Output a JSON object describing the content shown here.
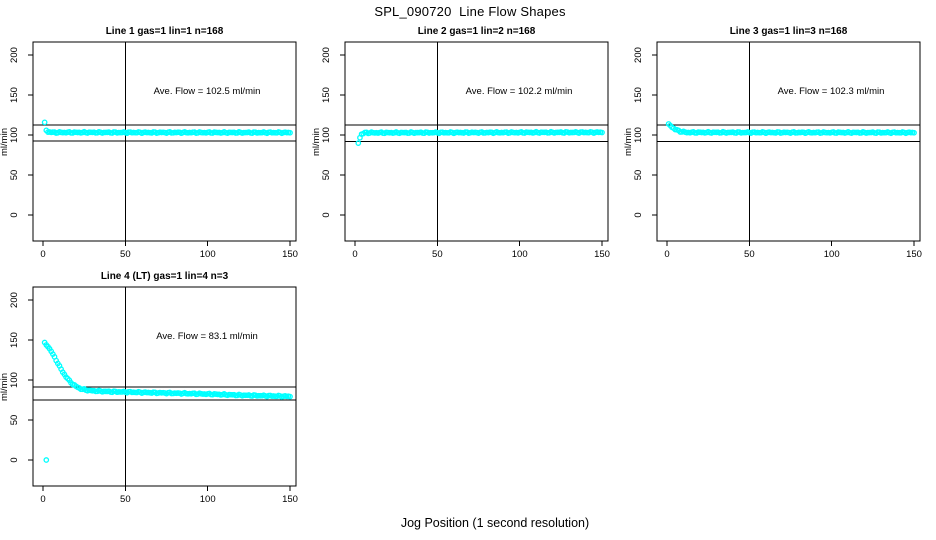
{
  "chart_data": {
    "type": "scatter",
    "title": "SPL_090720  Line Flow Shapes",
    "xlabel": "Jog Position (1 second resolution)",
    "ylabel": "ml/min",
    "point_color": "#00FFFF",
    "axis_color": "#000000",
    "grid": false,
    "legend": "none",
    "x_ticks": [
      0,
      50,
      100,
      150
    ],
    "y_ticks": [
      0,
      50,
      100,
      150,
      200
    ],
    "xlim": [
      -6,
      154
    ],
    "ylim": [
      -32,
      216
    ],
    "vline_x": 50,
    "subplots": [
      {
        "title": "Line 1 gas=1 lin=1 n=168",
        "annotation": "Ave. Flow =  102.5  ml/min",
        "ave_flow": 102.5,
        "n": 168,
        "hlines": [
          112.8,
          92.3
        ],
        "profile": [
          [
            1,
            115
          ],
          [
            2,
            106
          ],
          [
            3,
            104
          ],
          [
            6,
            103.2
          ],
          [
            150,
            103
          ]
        ],
        "extra_points": []
      },
      {
        "title": "Line 2 gas=1 lin=2 n=168",
        "annotation": "Ave. Flow =  102.2  ml/min",
        "ave_flow": 102.2,
        "n": 168,
        "hlines": [
          112.4,
          92.0
        ],
        "profile": [
          [
            2,
            90
          ],
          [
            3,
            97
          ],
          [
            4,
            101
          ],
          [
            6,
            102.8
          ],
          [
            150,
            103.3
          ]
        ],
        "extra_points": []
      },
      {
        "title": "Line 3 gas=1 lin=3 n=168",
        "annotation": "Ave. Flow =  102.3  ml/min",
        "ave_flow": 102.3,
        "n": 168,
        "hlines": [
          112.5,
          92.1
        ],
        "profile": [
          [
            1,
            113
          ],
          [
            2,
            112
          ],
          [
            3,
            110
          ],
          [
            5,
            107
          ],
          [
            8,
            104.5
          ],
          [
            12,
            103.2
          ],
          [
            150,
            103
          ]
        ],
        "extra_points": []
      },
      {
        "title": "Line 4 (LT) gas=1 lin=4 n=3",
        "annotation": "Ave. Flow =  83.1  ml/min",
        "ave_flow": 83.1,
        "n": 3,
        "hlines": [
          91.4,
          74.8
        ],
        "profile": [
          [
            1,
            146
          ],
          [
            2,
            144
          ],
          [
            3,
            142
          ],
          [
            4,
            139
          ],
          [
            5,
            136
          ],
          [
            6,
            132
          ],
          [
            8,
            125
          ],
          [
            10,
            117
          ],
          [
            12,
            110
          ],
          [
            14,
            104
          ],
          [
            16,
            99
          ],
          [
            18,
            95
          ],
          [
            20,
            92
          ],
          [
            23,
            89
          ],
          [
            26,
            87.5
          ],
          [
            30,
            86.5
          ],
          [
            40,
            85.5
          ],
          [
            60,
            84.5
          ],
          [
            80,
            83.5
          ],
          [
            100,
            82.5
          ],
          [
            120,
            81
          ],
          [
            150,
            79.5
          ]
        ],
        "extra_points": [
          [
            2,
            0
          ]
        ]
      }
    ]
  }
}
